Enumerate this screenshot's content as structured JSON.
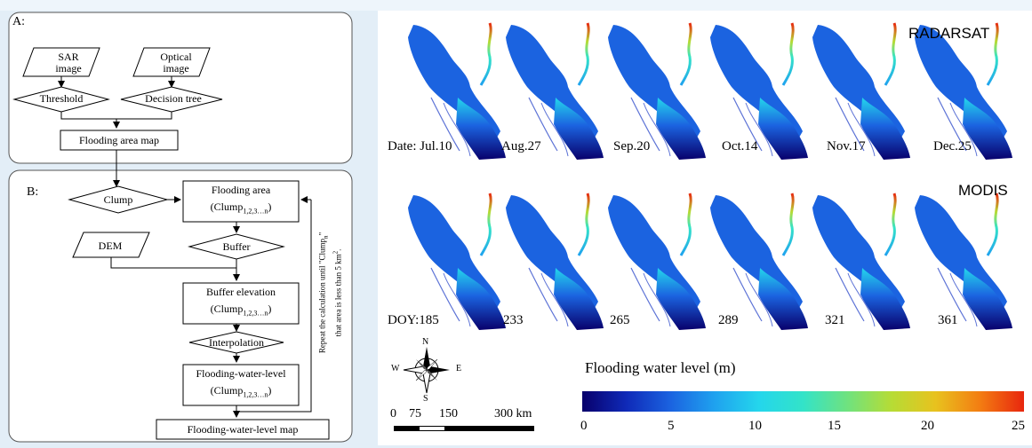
{
  "top_strip": "",
  "flowchart": {
    "section_a": {
      "label": "A:",
      "sar_line1": "SAR",
      "sar_line2": "image",
      "optical_line1": "Optical",
      "optical_line2": "image",
      "threshold": "Threshold",
      "decision_tree": "Decision tree",
      "flooding_area_map": "Flooding area map"
    },
    "section_b": {
      "label": "B:",
      "clump": "Clump",
      "flooding_area": "Flooding area",
      "clump_prefix": "(Clump",
      "clump_sub": "1,2,3…n",
      "clump_suffix": ")",
      "dem": "DEM",
      "buffer": "Buffer",
      "buffer_elevation": "Buffer elevation",
      "interpolation": "Interpolation",
      "flooding_water_level": "Flooding-water-level",
      "flooding_water_level_map": "Flooding-water-level map",
      "repeat_note_line1": "Repeat the calculation until \"Clump",
      "repeat_note_sub": "n",
      "repeat_note_end": "\"",
      "repeat_note_line2": "that area is less than 5 km",
      "repeat_note_sup": "2",
      "repeat_note_end2": "."
    }
  },
  "maps": {
    "radarsat_label": "RADARSAT",
    "modis_label": "MODIS",
    "radarsat_dates": [
      "Date: Jul.10",
      "Aug.27",
      "Sep.20",
      "Oct.14",
      "Nov.17",
      "Dec.25"
    ],
    "modis_doys": [
      "DOY:185",
      "233",
      "265",
      "289",
      "321",
      "361"
    ]
  },
  "compass": {
    "n": "N",
    "s": "S",
    "e": "E",
    "w": "W"
  },
  "scale_bar": {
    "ticks": [
      "0",
      "75",
      "150",
      "300 km"
    ]
  },
  "legend": {
    "title": "Flooding water level (m)",
    "ticks": [
      "0",
      "5",
      "10",
      "15",
      "20",
      "25"
    ],
    "colors": [
      "#08006b",
      "#0f2ab8",
      "#1b63e0",
      "#1fa2ef",
      "#24d6ec",
      "#33e3c8",
      "#6fe27f",
      "#b6dc35",
      "#e8c21e",
      "#f37d12",
      "#e8260e"
    ]
  }
}
